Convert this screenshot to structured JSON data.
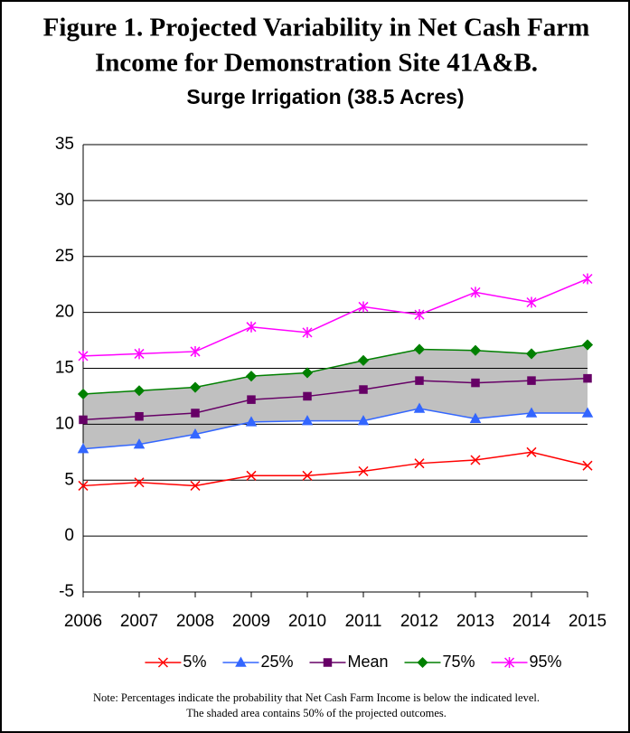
{
  "chart_data": {
    "type": "line",
    "title_lines": [
      "Figure 1.  Projected Variability in Net Cash Farm",
      "Income for Demonstration Site 41A&B."
    ],
    "subtitle": "Surge Irrigation (38.5 Acres)",
    "x": [
      2006,
      2007,
      2008,
      2009,
      2010,
      2011,
      2012,
      2013,
      2014,
      2015
    ],
    "xlim": [
      2006,
      2015
    ],
    "xticks": [
      2006,
      2007,
      2008,
      2009,
      2010,
      2011,
      2012,
      2013,
      2014,
      2015
    ],
    "ylim": [
      -5,
      35
    ],
    "yticks": [
      -5,
      0,
      5,
      10,
      15,
      20,
      25,
      30,
      35
    ],
    "grid": true,
    "legend": "bottom",
    "shaded_band_color": "#c0c0c0",
    "series": [
      {
        "name": "5%",
        "color": "#ff0000",
        "marker": "x",
        "values": [
          4.5,
          4.8,
          4.5,
          5.4,
          5.4,
          5.8,
          6.5,
          6.8,
          7.5,
          6.3
        ]
      },
      {
        "name": "25%",
        "color": "#3366ff",
        "marker": "triangle",
        "values": [
          7.8,
          8.2,
          9.1,
          10.2,
          10.3,
          10.3,
          11.4,
          10.5,
          11.0,
          11.0
        ]
      },
      {
        "name": "Mean",
        "color": "#660066",
        "marker": "square",
        "values": [
          10.4,
          10.7,
          11.0,
          12.2,
          12.5,
          13.1,
          13.9,
          13.7,
          13.9,
          14.1
        ]
      },
      {
        "name": "75%",
        "color": "#008000",
        "marker": "diamond",
        "values": [
          12.7,
          13.0,
          13.3,
          14.3,
          14.6,
          15.7,
          16.7,
          16.6,
          16.3,
          17.1
        ]
      },
      {
        "name": "95%",
        "color": "#ff00ff",
        "marker": "star",
        "values": [
          16.1,
          16.3,
          16.5,
          18.7,
          18.2,
          20.5,
          19.8,
          21.8,
          20.9,
          23.0
        ]
      }
    ],
    "notes": [
      "Note:  Percentages indicate the probability that Net Cash Farm Income is below the indicated level.",
      "The shaded area contains 50% of the projected outcomes."
    ]
  }
}
